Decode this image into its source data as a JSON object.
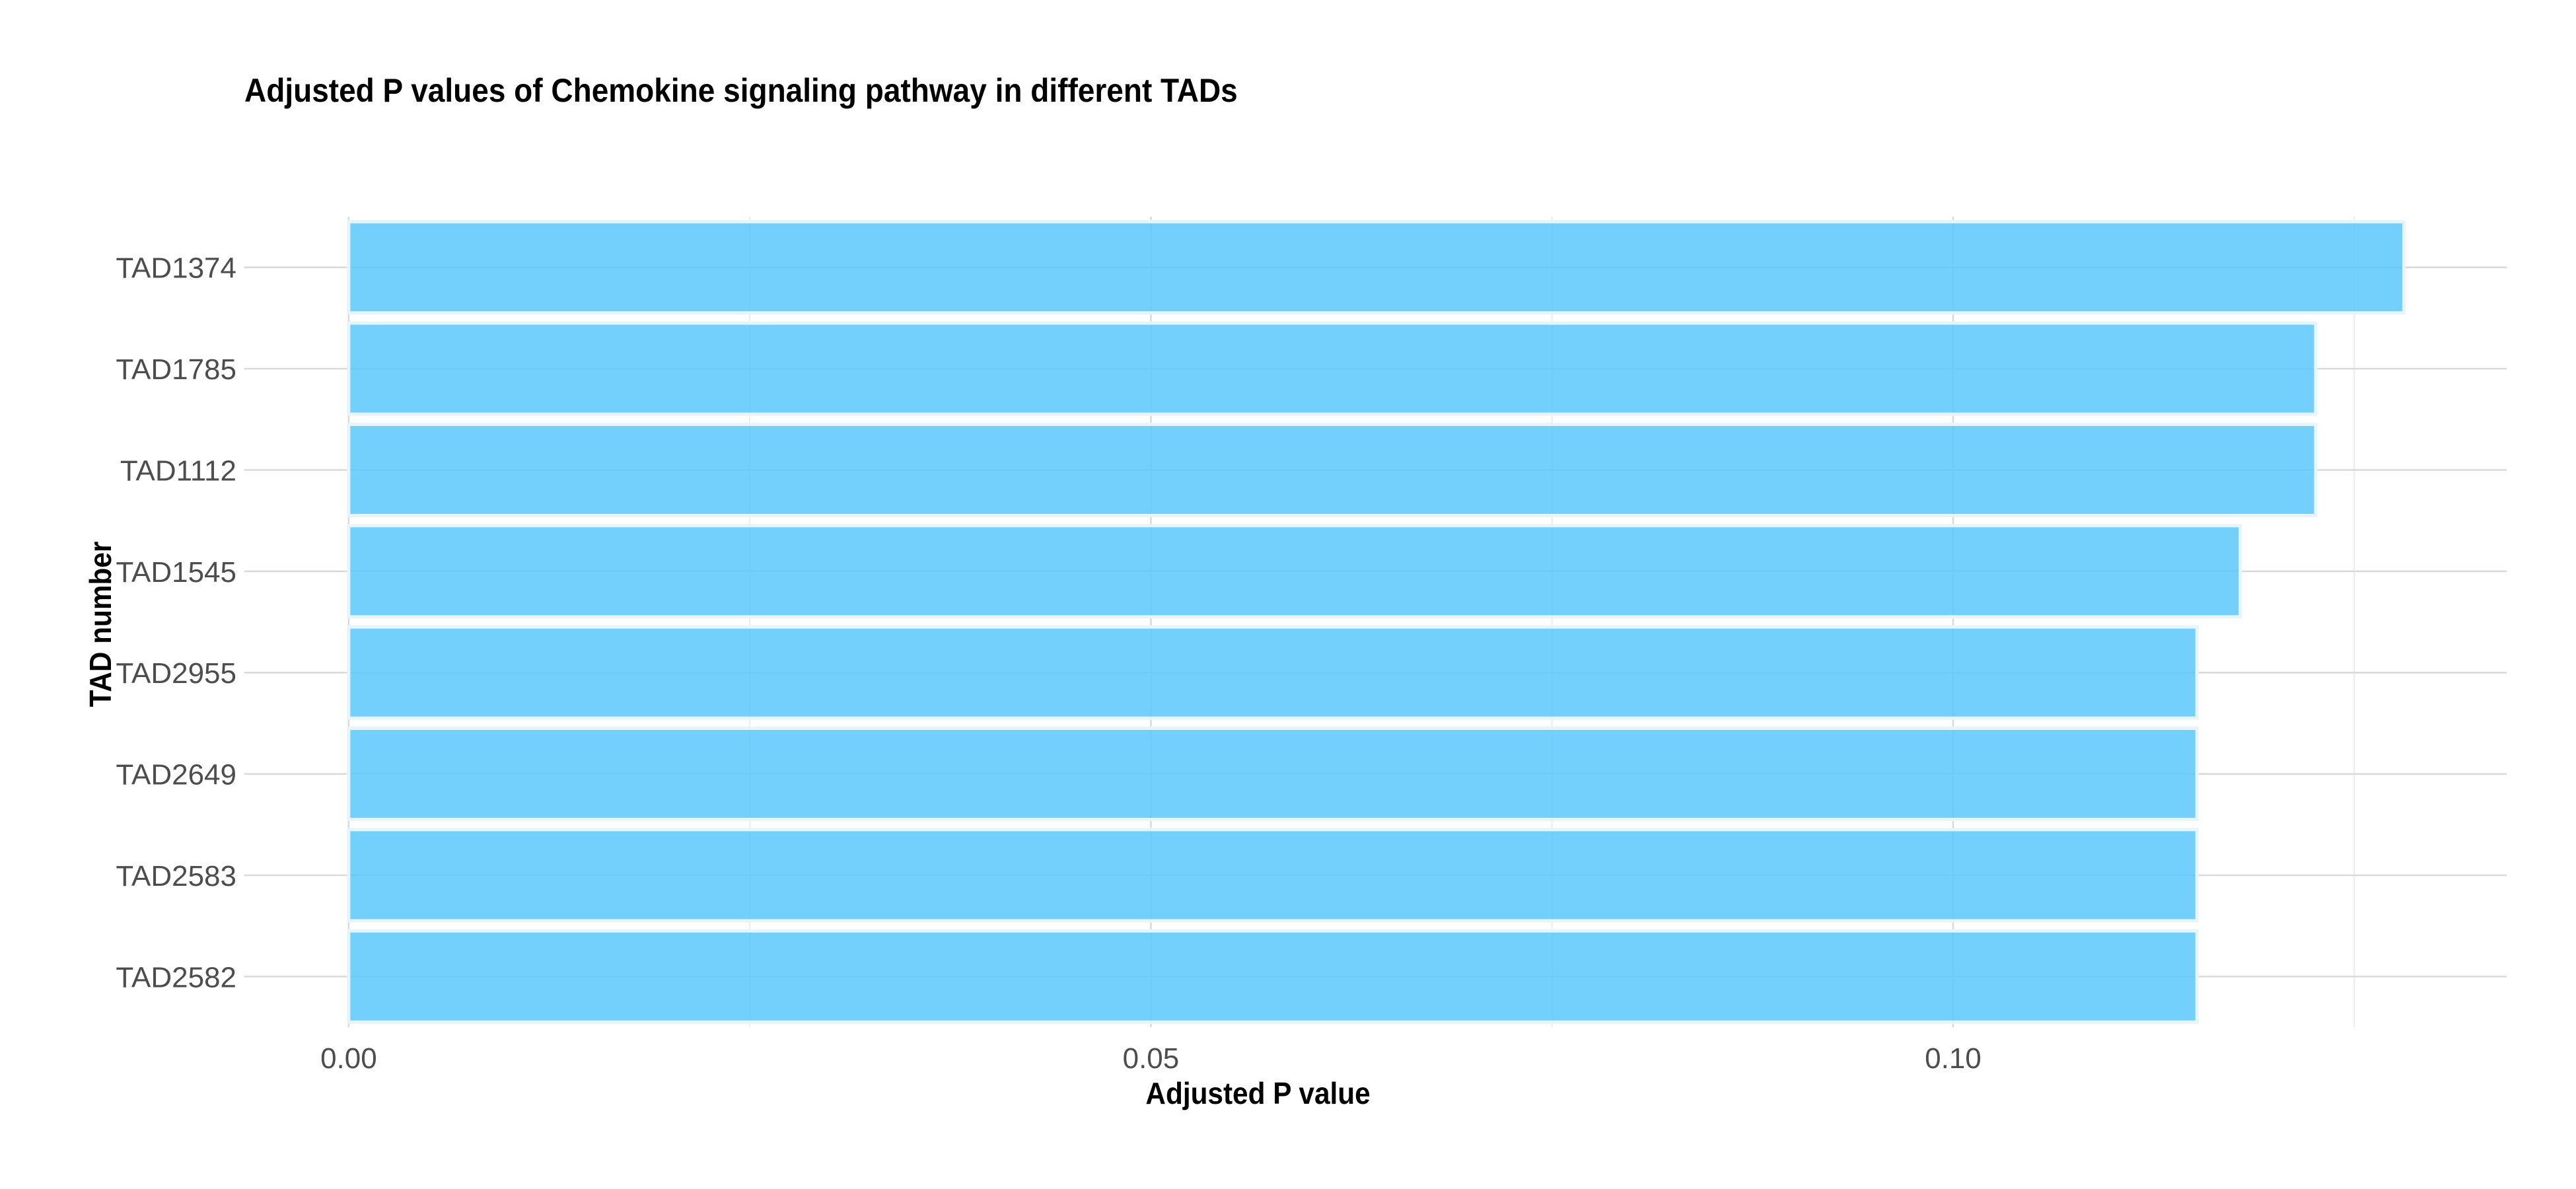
{
  "chart_data": {
    "type": "bar",
    "orientation": "horizontal",
    "title": "Adjusted P values of Chemokine signaling pathway in different TADs",
    "xlabel": "Adjusted P value",
    "ylabel": "TAD number",
    "categories": [
      "TAD1374",
      "TAD1785",
      "TAD1112",
      "TAD1545",
      "TAD2955",
      "TAD2649",
      "TAD2583",
      "TAD2582"
    ],
    "values": [
      0.1281,
      0.1226,
      0.1226,
      0.1179,
      0.1152,
      0.1152,
      0.1152,
      0.1152
    ],
    "xlim": [
      -0.0065,
      0.1345
    ],
    "xticks": [
      0.0,
      0.05,
      0.1
    ],
    "xtick_labels": [
      "0.00",
      "0.05",
      "0.10"
    ],
    "x_minor_gridlines": [
      0.025,
      0.075,
      0.125
    ],
    "bar_color": "#5bc8fb",
    "bar_outline_color": "#e6f4fb",
    "grid": true,
    "grid_color": "#d9d9d9",
    "legend": "none"
  }
}
